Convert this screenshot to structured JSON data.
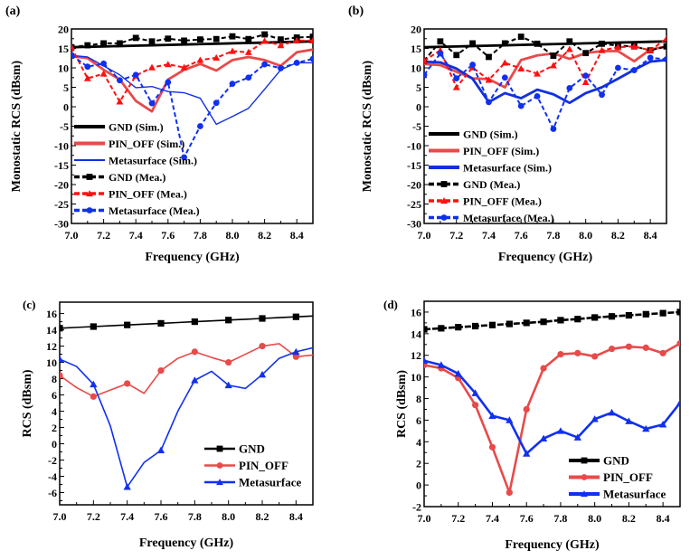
{
  "chart_data": [
    {
      "panel": "(a)",
      "type": "line",
      "xlabel": "Frequency (GHz)",
      "ylabel": "Monostatic RCS (dBsm)",
      "xlim": [
        7.0,
        8.5
      ],
      "ylim": [
        -30,
        20
      ],
      "xticks": [
        "7.0",
        "7.2",
        "7.4",
        "7.6",
        "7.8",
        "8.0",
        "8.2",
        "8.4"
      ],
      "yticks": [
        "20",
        "15",
        "10",
        "5",
        "0",
        "-5",
        "-10",
        "-15",
        "-20",
        "-25",
        "-30"
      ],
      "legend_position": "bottom-left",
      "x": [
        7.0,
        7.1,
        7.2,
        7.3,
        7.4,
        7.5,
        7.6,
        7.7,
        7.8,
        7.9,
        8.0,
        8.1,
        8.2,
        8.3,
        8.4,
        8.5
      ],
      "series": [
        {
          "name": "GND (Sim.)",
          "color": "#000000",
          "style": "solid-thick",
          "marker": "none",
          "values": [
            15.3,
            15.4,
            15.5,
            15.6,
            15.7,
            15.8,
            15.9,
            16.0,
            16.1,
            16.2,
            16.3,
            16.4,
            16.5,
            16.6,
            16.7,
            16.8
          ]
        },
        {
          "name": "PIN_OFF (Sim.)",
          "color": "#e84a4a",
          "style": "solid-thick",
          "marker": "none",
          "values": [
            13.0,
            12.5,
            9.5,
            7.0,
            1.5,
            -1.2,
            7.0,
            9.5,
            11.0,
            9.3,
            12.0,
            12.8,
            12.0,
            10.5,
            14.0,
            14.7
          ]
        },
        {
          "name": "Metasurface (Sim.)",
          "color": "#1030e0",
          "style": "solid-thin",
          "marker": "none",
          "values": [
            13.2,
            12.8,
            10.5,
            8.2,
            4.9,
            5.2,
            3.9,
            3.6,
            2.2,
            -4.5,
            -2.5,
            -0.4,
            4.5,
            9.5,
            11.3,
            11.3
          ]
        },
        {
          "name": "GND (Mea.)",
          "color": "#000000",
          "style": "dashed",
          "marker": "square",
          "values": [
            15.3,
            15.8,
            16.3,
            16.3,
            17.7,
            16.8,
            17.5,
            17.0,
            17.3,
            17.4,
            18.1,
            17.4,
            18.6,
            17.3,
            17.8,
            18.0
          ]
        },
        {
          "name": "PIN_OFF (Mea.)",
          "color": "#ff1010",
          "style": "dashed",
          "marker": "triangle",
          "values": [
            15.3,
            7.3,
            8.5,
            1.3,
            8.0,
            10.1,
            10.9,
            10.1,
            12.0,
            12.6,
            14.3,
            14.0,
            16.9,
            15.8,
            17.0,
            17.0
          ]
        },
        {
          "name": "Metasurface (Mea.)",
          "color": "#1030f0",
          "style": "dashed",
          "marker": "circle",
          "values": [
            13.3,
            10.3,
            11.1,
            6.8,
            8.2,
            0.9,
            6.3,
            -13.0,
            -5.0,
            1.0,
            5.9,
            7.5,
            10.9,
            9.9,
            11.3,
            12.3
          ]
        }
      ]
    },
    {
      "panel": "(b)",
      "type": "line",
      "xlabel": "Frequency (GHz)",
      "ylabel": "Monostatic RCS (dBsm)",
      "xlim": [
        7.0,
        8.5
      ],
      "ylim": [
        -30,
        20
      ],
      "xticks": [
        "7.0",
        "7.2",
        "7.4",
        "7.6",
        "7.8",
        "8.0",
        "8.2",
        "8.4"
      ],
      "yticks": [
        "20",
        "15",
        "10",
        "5",
        "0",
        "-5",
        "-10",
        "-15",
        "-20",
        "-25",
        "-30"
      ],
      "legend_position": "bottom-left",
      "x": [
        7.0,
        7.1,
        7.2,
        7.3,
        7.4,
        7.5,
        7.6,
        7.7,
        7.8,
        7.9,
        8.0,
        8.1,
        8.2,
        8.3,
        8.4,
        8.5
      ],
      "series": [
        {
          "name": "GND (Sim.)",
          "color": "#000000",
          "style": "solid-thick",
          "marker": "none",
          "values": [
            15.3,
            15.4,
            15.5,
            15.6,
            15.7,
            15.8,
            15.9,
            16.0,
            16.1,
            16.2,
            16.3,
            16.4,
            16.5,
            16.6,
            16.7,
            16.8
          ]
        },
        {
          "name": "PIN_OFF (Sim.)",
          "color": "#e84a4a",
          "style": "solid-thick",
          "marker": "none",
          "values": [
            11.0,
            10.7,
            9.0,
            7.3,
            7.1,
            5.0,
            12.0,
            13.2,
            13.7,
            12.3,
            13.8,
            14.3,
            14.3,
            11.7,
            14.7,
            15.5
          ]
        },
        {
          "name": "Metasurface (Sim.)",
          "color": "#1030e0",
          "style": "solid-thick",
          "marker": "none",
          "values": [
            11.6,
            11.4,
            9.8,
            7.2,
            1.2,
            3.5,
            2.2,
            4.4,
            3.2,
            1.0,
            3.5,
            5.0,
            7.2,
            9.5,
            11.6,
            12.0
          ]
        },
        {
          "name": "GND (Mea.)",
          "color": "#000000",
          "style": "dashed",
          "marker": "square",
          "values": [
            11.8,
            16.8,
            13.3,
            16.3,
            12.8,
            16.3,
            18.0,
            16.2,
            13.1,
            16.8,
            13.8,
            16.2,
            15.7,
            15.5,
            14.5,
            15.5
          ]
        },
        {
          "name": "PIN_OFF (Mea.)",
          "color": "#ff1010",
          "style": "dashed",
          "marker": "triangle",
          "values": [
            11.8,
            14.5,
            5.0,
            10.1,
            6.9,
            11.3,
            9.8,
            8.5,
            10.6,
            14.8,
            6.3,
            14.5,
            15.3,
            15.5,
            14.5,
            17.5
          ]
        },
        {
          "name": "Metasurface (Mea.)",
          "color": "#1030f0",
          "style": "dashed",
          "marker": "circle",
          "values": [
            8.2,
            13.7,
            7.3,
            10.8,
            1.2,
            7.5,
            0.2,
            2.7,
            -5.7,
            4.8,
            8.0,
            3.1,
            10.0,
            9.4,
            12.6,
            12.2
          ]
        }
      ]
    },
    {
      "panel": "(c)",
      "type": "line",
      "xlabel": "Frequency (GHz)",
      "ylabel": "RCS (dBsm)",
      "xlim": [
        7.0,
        8.5
      ],
      "ylim": [
        -7.5,
        17.4
      ],
      "xticks": [
        "7.0",
        "7.2",
        "7.4",
        "7.6",
        "7.8",
        "8.0",
        "8.2",
        "8.4"
      ],
      "yticks": [
        "16",
        "14",
        "12",
        "10",
        "8",
        "6",
        "4",
        "2",
        "0",
        "-2",
        "-4",
        "-6"
      ],
      "legend_position": "bottom-right",
      "x": [
        7.0,
        7.1,
        7.2,
        7.3,
        7.4,
        7.5,
        7.6,
        7.7,
        7.8,
        7.9,
        8.0,
        8.1,
        8.2,
        8.3,
        8.4,
        8.5
      ],
      "marker_every": 2,
      "series": [
        {
          "name": "GND",
          "color": "#000000",
          "marker": "square",
          "values": [
            14.2,
            14.3,
            14.4,
            14.5,
            14.6,
            14.7,
            14.8,
            14.9,
            15.0,
            15.1,
            15.2,
            15.3,
            15.4,
            15.5,
            15.6,
            15.7
          ]
        },
        {
          "name": "PIN_OFF",
          "color": "#e84a4a",
          "marker": "circle",
          "values": [
            8.4,
            6.9,
            5.8,
            6.6,
            7.4,
            6.2,
            9.0,
            10.5,
            11.3,
            10.6,
            10.0,
            11.0,
            12.0,
            12.3,
            10.7,
            10.9
          ]
        },
        {
          "name": "Metasurface",
          "color": "#1030f0",
          "marker": "triangle",
          "values": [
            10.4,
            9.5,
            7.3,
            2.2,
            -5.3,
            -2.3,
            -0.8,
            4.0,
            7.8,
            8.9,
            7.2,
            6.8,
            8.5,
            10.5,
            11.3,
            11.8
          ]
        }
      ]
    },
    {
      "panel": "(d)",
      "type": "line",
      "xlabel": "Frequency (GHz)",
      "ylabel": "RCS (dBsm)",
      "xlim": [
        7.0,
        8.5
      ],
      "ylim": [
        -2,
        17
      ],
      "xticks": [
        "7.0",
        "7.2",
        "7.4",
        "7.6",
        "7.8",
        "8.0",
        "8.2",
        "8.4"
      ],
      "yticks": [
        "16",
        "14",
        "12",
        "10",
        "8",
        "6",
        "4",
        "2",
        "0",
        "-2"
      ],
      "legend_position": "bottom-right",
      "x": [
        7.0,
        7.1,
        7.2,
        7.3,
        7.4,
        7.5,
        7.6,
        7.7,
        7.8,
        7.9,
        8.0,
        8.1,
        8.2,
        8.3,
        8.4,
        8.5
      ],
      "marker_every": 1,
      "series": [
        {
          "name": "GND",
          "color": "#000000",
          "marker": "square",
          "values": [
            14.4,
            14.5,
            14.6,
            14.7,
            14.8,
            14.9,
            15.0,
            15.1,
            15.25,
            15.35,
            15.5,
            15.6,
            15.7,
            15.8,
            15.9,
            16.0
          ]
        },
        {
          "name": "PIN_OFF",
          "color": "#e84a4a",
          "marker": "circle",
          "values": [
            11.1,
            10.8,
            9.9,
            7.4,
            3.5,
            -0.7,
            7.0,
            10.8,
            12.1,
            12.2,
            11.9,
            12.6,
            12.8,
            12.7,
            12.2,
            13.1
          ]
        },
        {
          "name": "Metasurface",
          "color": "#1030f0",
          "marker": "triangle",
          "values": [
            11.5,
            11.1,
            10.3,
            8.5,
            6.4,
            6.0,
            2.9,
            4.3,
            5.0,
            4.4,
            6.1,
            6.7,
            5.9,
            5.2,
            5.6,
            7.6
          ]
        }
      ]
    }
  ],
  "panels": [
    {
      "label": "(a)"
    },
    {
      "label": "(b)"
    },
    {
      "label": "(c)"
    },
    {
      "label": "(d)"
    }
  ]
}
